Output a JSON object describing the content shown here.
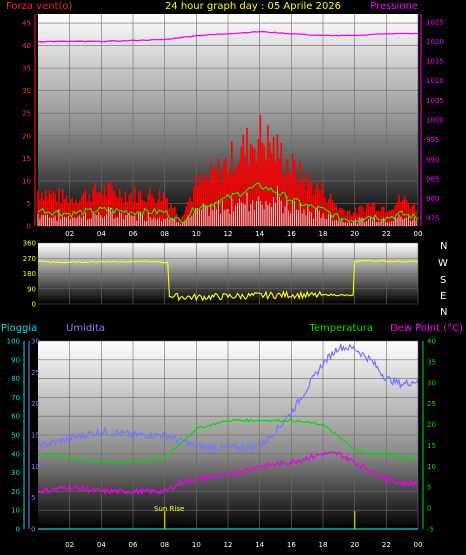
{
  "header": {
    "left_label": "Forza vent(o)",
    "title": "24 hour graph day : 05 Aprile 2026",
    "right_label": "Pressione"
  },
  "bottom_header": {
    "pioggia": "Pioggia",
    "umidita": "Umidita",
    "temperatura": "Temperatura",
    "dew_point": "Dew Point (°C)"
  },
  "sun_rise_label": "Sun Rise",
  "compass": [
    "N",
    "W",
    "S",
    "E",
    "N"
  ],
  "colors": {
    "wind_gust": "#ff0000",
    "wind_avg": "#00ff00",
    "wind_speed": "#ffffff",
    "pressure": "#ff00ff",
    "direction": "#ffff00",
    "humidity": "#7777ff",
    "temperature": "#00dd00",
    "dew_point": "#ee00ee",
    "rain": "#00e0e0",
    "sun": "#bbbb00"
  },
  "chart_data": [
    {
      "type": "line",
      "panel": "wind_pressure",
      "x_ticks": [
        "02",
        "04",
        "06",
        "08",
        "10",
        "12",
        "14",
        "16",
        "18",
        "20",
        "22",
        "00"
      ],
      "left_axis": {
        "label": "Forza vent(o)",
        "ticks": [
          0,
          5,
          10,
          15,
          20,
          25,
          30,
          35,
          40,
          45
        ],
        "ylim": [
          0,
          47
        ]
      },
      "right_axis": {
        "label": "Pressione",
        "ticks": [
          975,
          980,
          985,
          990,
          995,
          1000,
          1005,
          1010,
          1015,
          1020,
          1025
        ],
        "ylim": [
          973,
          1027
        ]
      },
      "series": [
        {
          "name": "Pressione",
          "axis": "right",
          "x": [
            0,
            4,
            8,
            10,
            12,
            14,
            16,
            18,
            20,
            22,
            24
          ],
          "values": [
            1020,
            1020,
            1020.5,
            1021.5,
            1022,
            1022.5,
            1022,
            1021.5,
            1021.5,
            1022,
            1022
          ]
        },
        {
          "name": "Forza vent(o)",
          "axis": "left",
          "x": [
            0,
            2,
            4,
            6,
            8,
            9,
            10,
            11,
            12,
            13,
            14,
            15,
            16,
            17,
            18,
            19,
            20,
            21,
            22,
            23,
            24
          ],
          "values": [
            8,
            6,
            8,
            7,
            7,
            2,
            9,
            11,
            14,
            17,
            20,
            17,
            13,
            10,
            8,
            4,
            3,
            5,
            4,
            6,
            4
          ]
        }
      ]
    },
    {
      "type": "line",
      "panel": "wind_direction",
      "left_axis": {
        "ticks": [
          0,
          90,
          180,
          270,
          360
        ],
        "ylim": [
          0,
          360
        ]
      },
      "series": [
        {
          "name": "direction",
          "x": [
            0,
            1,
            4,
            7,
            8.2,
            8.3,
            10,
            12,
            14,
            16,
            17.5,
            18.3,
            19.9,
            20,
            20.4,
            24
          ],
          "values": [
            255,
            245,
            250,
            250,
            245,
            45,
            40,
            45,
            50,
            55,
            50,
            55,
            50,
            250,
            255,
            250
          ]
        }
      ]
    },
    {
      "type": "line",
      "panel": "humidity_temperature",
      "x_ticks": [
        "02",
        "04",
        "06",
        "08",
        "10",
        "12",
        "14",
        "16",
        "18",
        "20",
        "22",
        "00"
      ],
      "rain_axis": {
        "label": "Pioggia",
        "ticks": [
          0,
          10,
          20,
          30,
          40,
          50,
          60,
          70,
          80,
          90,
          100
        ],
        "ylim": [
          0,
          100
        ]
      },
      "humidity_axis": {
        "label": "Umidita",
        "ticks": [
          0,
          5,
          10,
          15,
          20,
          25,
          30
        ],
        "ylim": [
          0,
          30
        ]
      },
      "temperature_axis": {
        "label": "Temperatura",
        "ticks": [
          -5,
          0,
          5,
          10,
          15,
          20,
          25,
          30,
          35,
          40
        ],
        "ylim": [
          -5,
          40
        ]
      },
      "series": [
        {
          "name": "Umidita",
          "x": [
            0,
            2,
            4,
            6,
            8,
            10,
            12,
            14,
            15,
            16,
            17,
            18,
            19,
            20,
            21,
            22,
            23,
            24
          ],
          "values": [
            44,
            48,
            52,
            50,
            50,
            44,
            43,
            44,
            52,
            62,
            75,
            88,
            97,
            96,
            90,
            80,
            77,
            79
          ]
        },
        {
          "name": "Temperatura",
          "x": [
            0,
            2,
            4,
            6,
            8,
            10,
            12,
            14,
            16,
            18,
            19,
            20,
            21,
            22,
            23,
            24
          ],
          "values": [
            13,
            12,
            11,
            11,
            12,
            19,
            21,
            21,
            21,
            20,
            17,
            14,
            13,
            13,
            12,
            12
          ]
        },
        {
          "name": "Dew Point (°C)",
          "x": [
            0,
            2,
            4,
            6,
            8,
            9,
            10,
            12,
            14,
            16,
            18,
            19,
            20,
            21,
            22,
            23,
            24
          ],
          "values": [
            4,
            5,
            4,
            4,
            4,
            6,
            7,
            8,
            10,
            11,
            13,
            13,
            11,
            9,
            7,
            6,
            6
          ]
        },
        {
          "name": "Pioggia",
          "x": [
            0,
            24
          ],
          "values": [
            0,
            0
          ]
        }
      ],
      "sun_rise_x": 8.0,
      "sun_set_x": 20.0
    }
  ]
}
